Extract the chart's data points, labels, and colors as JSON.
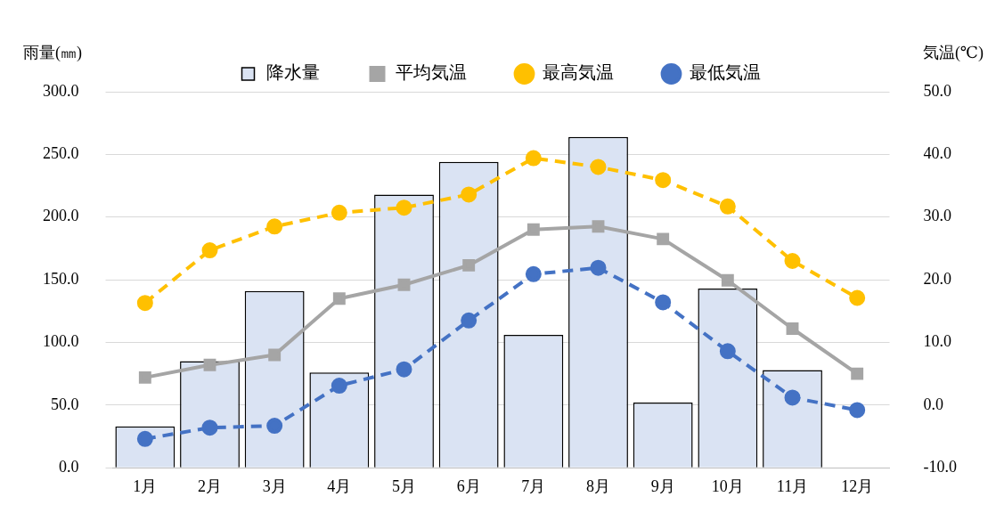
{
  "chart_data": {
    "type": "bar",
    "ylabel": "雨量(㎜)",
    "y2label": "気温(℃)",
    "categories": [
      "1月",
      "2月",
      "3月",
      "4月",
      "5月",
      "6月",
      "7月",
      "8月",
      "9月",
      "10月",
      "11月",
      "12月"
    ],
    "series": [
      {
        "name": "降水量",
        "color": "#dae3f3",
        "values": [
          33,
          85,
          141,
          76,
          218,
          244,
          106,
          264,
          52,
          143,
          78,
          null
        ]
      },
      {
        "name": "平均気温",
        "type": "line",
        "axis": "y2",
        "color": "#a5a5a5",
        "marker": "square",
        "line_style": "solid",
        "values": [
          4.4,
          6.4,
          8.0,
          17.0,
          19.2,
          22.3,
          28.0,
          28.5,
          26.5,
          19.9,
          12.2,
          5.0
        ]
      },
      {
        "name": "最高気温",
        "type": "line",
        "axis": "y2",
        "color": "#ffc000",
        "marker": "circle",
        "line_style": "dashed",
        "values": [
          16.3,
          24.7,
          28.5,
          30.7,
          31.5,
          33.6,
          39.4,
          38.0,
          35.9,
          31.7,
          23.0,
          17.1
        ]
      },
      {
        "name": "最低気温",
        "type": "line",
        "axis": "y2",
        "color": "#4472c4",
        "marker": "circle",
        "line_style": "dashed",
        "values": [
          -5.4,
          -3.6,
          -3.3,
          3.1,
          5.7,
          13.5,
          20.9,
          21.9,
          16.4,
          8.6,
          1.2,
          -0.8
        ]
      }
    ],
    "ylim": [
      0,
      300
    ],
    "yticks": [
      {
        "value": 0,
        "label": "0.0"
      },
      {
        "value": 50,
        "label": "50.0"
      },
      {
        "value": 100,
        "label": "100.0"
      },
      {
        "value": 150,
        "label": "150.0"
      },
      {
        "value": 200,
        "label": "200.0"
      },
      {
        "value": 250,
        "label": "250.0"
      },
      {
        "value": 300,
        "label": "300.0"
      }
    ],
    "y2lim": [
      -10,
      50
    ],
    "y2ticks": [
      {
        "value": -10,
        "label": "-10.0"
      },
      {
        "value": 0,
        "label": "0.0"
      },
      {
        "value": 10,
        "label": "10.0"
      },
      {
        "value": 20,
        "label": "20.0"
      },
      {
        "value": 30,
        "label": "30.0"
      },
      {
        "value": 40,
        "label": "40.0"
      },
      {
        "value": 50,
        "label": "50.0"
      }
    ],
    "grid": "y",
    "legend": "top"
  }
}
